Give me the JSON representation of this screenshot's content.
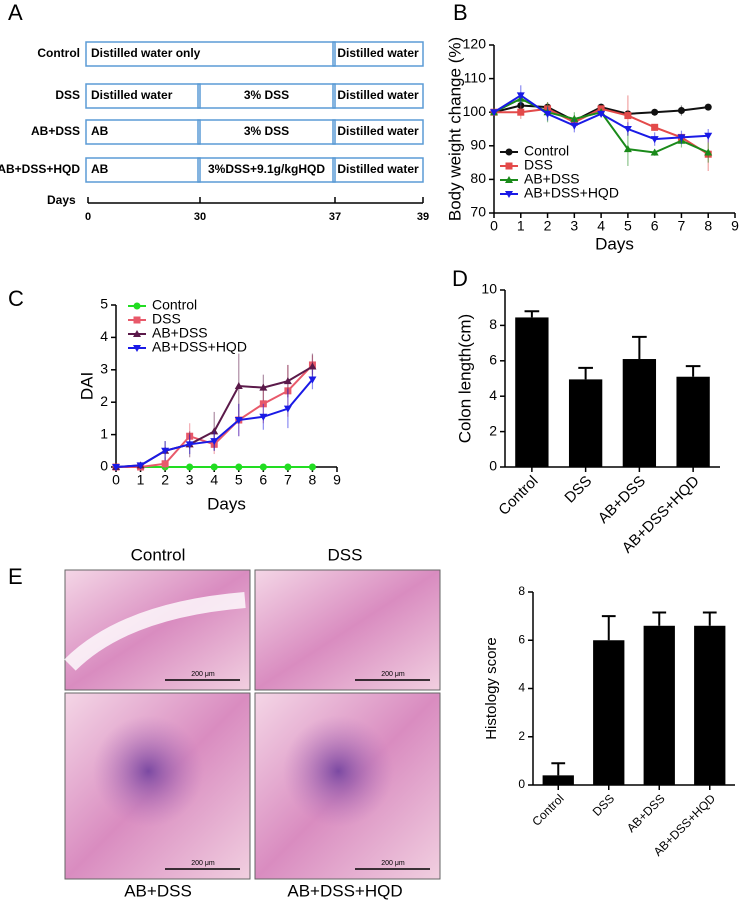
{
  "design": {
    "panel": "A",
    "rows": [
      {
        "label": "Control",
        "cells": [
          "Distilled water  only",
          "Distilled water"
        ]
      },
      {
        "label": "DSS",
        "cells": [
          "Distilled water",
          "3% DSS",
          "Distilled water"
        ]
      },
      {
        "label": "AB+DSS",
        "cells": [
          "AB",
          "3% DSS",
          "Distilled water"
        ]
      },
      {
        "label": "AB+DSS+HQD",
        "cells": [
          "AB",
          "3%DSS+9.1g/kgHQD",
          "Distilled water"
        ]
      }
    ],
    "days_label": "Days",
    "day_ticks": [
      0,
      30,
      37,
      39
    ]
  },
  "chart_data": [
    {
      "type": "line",
      "panel": "B",
      "ylabel": "Body weight change (%)",
      "xlabel": "Days",
      "x": [
        0,
        1,
        2,
        3,
        4,
        5,
        6,
        7,
        8
      ],
      "xlim": [
        0,
        9
      ],
      "xticks": [
        0,
        1,
        2,
        3,
        4,
        5,
        6,
        7,
        8,
        9
      ],
      "ylim": [
        70,
        120
      ],
      "yticks": [
        70,
        80,
        90,
        100,
        110,
        120
      ],
      "legend": "lower left",
      "series": [
        {
          "name": "Control",
          "color": "#111111",
          "marker": "circle",
          "values": [
            100,
            102,
            101.5,
            97.5,
            101.5,
            99.5,
            100,
            100.5,
            101.5
          ],
          "errors": [
            0,
            1,
            1,
            1,
            1,
            1,
            1,
            1.5,
            0
          ]
        },
        {
          "name": "DSS",
          "color": "#e34a4a",
          "marker": "square",
          "values": [
            100,
            100,
            101,
            97,
            101,
            99,
            95.5,
            92.5,
            87.5
          ],
          "errors": [
            0,
            2,
            2,
            2,
            1,
            6,
            1,
            1,
            5
          ]
        },
        {
          "name": "AB+DSS",
          "color": "#1a8a1a",
          "marker": "triangle",
          "values": [
            100,
            104,
            100,
            98,
            100,
            89,
            88,
            91.5,
            88
          ],
          "errors": [
            0,
            2,
            3,
            2,
            1,
            5,
            1,
            2,
            3
          ]
        },
        {
          "name": "AB+DSS+HQD",
          "color": "#1a1ae6",
          "marker": "down-triangle",
          "values": [
            100,
            105,
            99.5,
            96,
            99.5,
            95,
            92,
            92.5,
            93
          ],
          "errors": [
            0,
            3,
            2,
            2,
            1,
            2,
            2,
            2,
            2
          ]
        }
      ]
    },
    {
      "type": "line",
      "panel": "C",
      "ylabel": "DAI",
      "xlabel": "Days",
      "x": [
        0,
        1,
        2,
        3,
        4,
        5,
        6,
        7,
        8
      ],
      "xlim": [
        0,
        9
      ],
      "xticks": [
        0,
        1,
        2,
        3,
        4,
        5,
        6,
        7,
        8,
        9
      ],
      "ylim": [
        0,
        5
      ],
      "yticks": [
        0,
        1,
        2,
        3,
        4,
        5
      ],
      "legend": "upper left",
      "series": [
        {
          "name": "Control",
          "color": "#22dd22",
          "marker": "circle",
          "values": [
            0,
            0,
            0,
            0,
            0,
            0,
            0,
            0,
            0
          ],
          "errors": [
            0,
            0,
            0,
            0,
            0,
            0,
            0,
            0,
            0
          ]
        },
        {
          "name": "DSS",
          "color": "#e8596a",
          "marker": "square",
          "values": [
            0,
            0,
            0.1,
            0.95,
            0.7,
            1.45,
            1.95,
            2.35,
            3.15
          ],
          "errors": [
            0,
            0.1,
            0.2,
            0.4,
            0.3,
            0.5,
            0.6,
            0.8,
            0.3
          ]
        },
        {
          "name": "AB+DSS",
          "color": "#5b1a4a",
          "marker": "triangle",
          "values": [
            0,
            0.05,
            0.5,
            0.7,
            1.1,
            2.5,
            2.45,
            2.65,
            3.1
          ],
          "errors": [
            0,
            0.1,
            0.3,
            0.4,
            0.6,
            1,
            0.4,
            0.5,
            0.4
          ]
        },
        {
          "name": "AB+DSS+HQD",
          "color": "#1a1ae6",
          "marker": "down-triangle",
          "values": [
            0,
            0.05,
            0.5,
            0.7,
            0.8,
            1.45,
            1.55,
            1.8,
            2.7
          ],
          "errors": [
            0,
            0.1,
            0.3,
            0.3,
            0.3,
            0.5,
            0.4,
            0.6,
            0.3
          ]
        }
      ]
    },
    {
      "type": "bar",
      "panel": "D",
      "ylabel": "Colon length(cm)",
      "categories": [
        "Control",
        "DSS",
        "AB+DSS",
        "AB+DSS+HQD"
      ],
      "values": [
        8.45,
        4.95,
        6.1,
        5.1
      ],
      "errors": [
        0.35,
        0.65,
        1.25,
        0.6
      ],
      "color": "#000000",
      "ylim": [
        0,
        10
      ],
      "yticks": [
        0,
        2,
        4,
        6,
        8,
        10
      ]
    },
    {
      "type": "bar",
      "panel": "E",
      "ylabel": "Histology score",
      "categories": [
        "Control",
        "DSS",
        "AB+DSS",
        "AB+DSS+HQD"
      ],
      "values": [
        0.4,
        6,
        6.6,
        6.6
      ],
      "errors": [
        0.5,
        1,
        0.55,
        0.55
      ],
      "color": "#000000",
      "ylim": [
        0,
        8
      ],
      "yticks": [
        0,
        2,
        4,
        6,
        8
      ]
    }
  ],
  "histology": {
    "images": [
      {
        "label": "Control",
        "scale": "200 μm"
      },
      {
        "label": "DSS",
        "scale": "200 μm"
      },
      {
        "label": "AB+DSS",
        "scale": "200 μm"
      },
      {
        "label": "AB+DSS+HQD",
        "scale": "200 μm"
      }
    ]
  }
}
